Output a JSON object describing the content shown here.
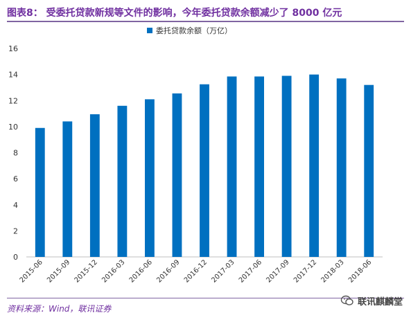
{
  "header": {
    "title": "图表8：  受委托贷款新规等文件的影响，今年委托贷款余额减少了 8000 亿元"
  },
  "chart_data": {
    "type": "bar",
    "categories": [
      "2015-06",
      "2015-09",
      "2015-12",
      "2016-03",
      "2016-06",
      "2016-09",
      "2016-12",
      "2017-03",
      "2017-06",
      "2017-09",
      "2017-12",
      "2018-03",
      "2018-06"
    ],
    "series": [
      {
        "name": "委托贷款余额（万亿）",
        "values": [
          9.9,
          10.4,
          10.95,
          11.6,
          12.1,
          12.55,
          13.25,
          13.85,
          13.85,
          13.9,
          14.0,
          13.7,
          13.2
        ],
        "color": "#0070c0"
      }
    ],
    "ylim": [
      0,
      16
    ],
    "yticks": [
      0,
      2,
      4,
      6,
      8,
      10,
      12,
      14,
      16
    ],
    "grid": false,
    "legend_position": "top-center"
  },
  "footer": {
    "source": "资料来源：Wind，联讯证券",
    "watermark": "联讯麒麟堂"
  }
}
